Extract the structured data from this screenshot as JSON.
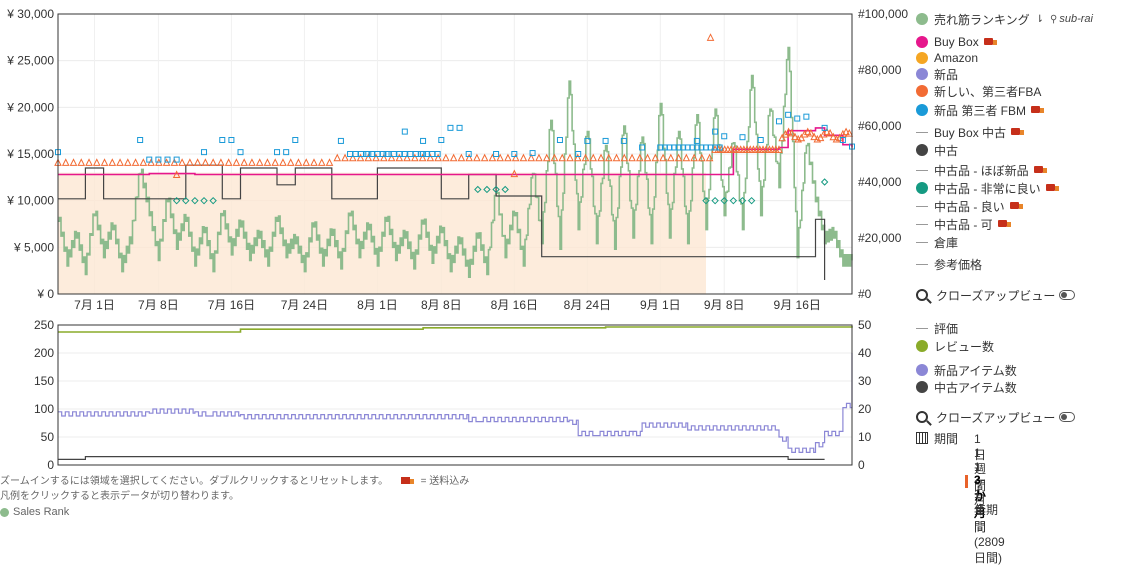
{
  "chart_data": [
    {
      "type": "line",
      "panel": "price-and-rank",
      "y_left": {
        "unit": "¥",
        "ylim": [
          0,
          30000
        ],
        "ticks": [
          "¥ 0",
          "¥ 5,000",
          "¥ 10,000",
          "¥ 15,000",
          "¥ 20,000",
          "¥ 25,000",
          "¥ 30,000"
        ]
      },
      "y_right": {
        "unit": "#",
        "ylim": [
          0,
          100000
        ],
        "ticks": [
          "#0",
          "#20,000",
          "#40,000",
          "#60,000",
          "#80,000",
          "#100,000"
        ]
      },
      "x_ticks": [
        "7月 1日",
        "7月 8日",
        "7月 16日",
        "7月 24日",
        "8月 1日",
        "8月 8日",
        "8月 16日",
        "8月 24日",
        "9月 1日",
        "9月 8日",
        "9月 16日"
      ],
      "x_range_days": [
        0,
        87
      ],
      "x_tick_days": [
        4,
        11,
        19,
        27,
        35,
        42,
        50,
        58,
        66,
        73,
        81
      ],
      "series": [
        {
          "name": "売れ筋ランキング",
          "color": "#8dbb8d",
          "axis": "right",
          "points": [
            [
              0,
              28000
            ],
            [
              1,
              12000
            ],
            [
              2,
              22000
            ],
            [
              3,
              9000
            ],
            [
              4,
              30000
            ],
            [
              5,
              15000
            ],
            [
              6,
              25000
            ],
            [
              7,
              10000
            ],
            [
              8,
              20000
            ],
            [
              9,
              45000
            ],
            [
              10,
              30000
            ],
            [
              11,
              14000
            ],
            [
              12,
              35000
            ],
            [
              13,
              18000
            ],
            [
              14,
              28000
            ],
            [
              15,
              12000
            ],
            [
              16,
              24000
            ],
            [
              17,
              10000
            ],
            [
              18,
              30000
            ],
            [
              19,
              16000
            ],
            [
              20,
              26000
            ],
            [
              21,
              14000
            ],
            [
              22,
              22000
            ],
            [
              23,
              12000
            ],
            [
              24,
              28000
            ],
            [
              25,
              15000
            ],
            [
              26,
              20000
            ],
            [
              27,
              10000
            ],
            [
              28,
              26000
            ],
            [
              29,
              12000
            ],
            [
              30,
              23000
            ],
            [
              31,
              11000
            ],
            [
              32,
              30000
            ],
            [
              33,
              15000
            ],
            [
              34,
              25000
            ],
            [
              35,
              12000
            ],
            [
              36,
              28000
            ],
            [
              37,
              14000
            ],
            [
              38,
              22000
            ],
            [
              39,
              11000
            ],
            [
              40,
              27000
            ],
            [
              41,
              13000
            ],
            [
              42,
              24000
            ],
            [
              43,
              10000
            ],
            [
              44,
              20000
            ],
            [
              45,
              8000
            ],
            [
              46,
              22000
            ],
            [
              47,
              9000
            ],
            [
              48,
              38000
            ],
            [
              49,
              15000
            ],
            [
              50,
              30000
            ],
            [
              51,
              12000
            ],
            [
              52,
              45000
            ],
            [
              53,
              20000
            ],
            [
              54,
              64000
            ],
            [
              55,
              18000
            ],
            [
              56,
              78000
            ],
            [
              57,
              25000
            ],
            [
              58,
              60000
            ],
            [
              59,
              20000
            ],
            [
              60,
              55000
            ],
            [
              61,
              18000
            ],
            [
              62,
              62000
            ],
            [
              63,
              22000
            ],
            [
              64,
              58000
            ],
            [
              65,
              20000
            ],
            [
              66,
              70000
            ],
            [
              67,
              22000
            ],
            [
              68,
              60000
            ],
            [
              69,
              20000
            ],
            [
              70,
              66000
            ],
            [
              71,
              25000
            ],
            [
              72,
              68000
            ],
            [
              73,
              30000
            ],
            [
              74,
              56000
            ],
            [
              75,
              25000
            ],
            [
              76,
              80000
            ],
            [
              77,
              30000
            ],
            [
              78,
              68000
            ],
            [
              79,
              40000
            ],
            [
              80,
              90000
            ],
            [
              81,
              15000
            ],
            [
              82,
              55000
            ],
            [
              83,
              35000
            ],
            [
              84,
              20000
            ],
            [
              85,
              22000
            ],
            [
              86,
              12000
            ],
            [
              87,
              12000
            ]
          ]
        },
        {
          "name": "Buy Box",
          "color": "#e6178c",
          "axis": "left",
          "points": [
            [
              0,
              12800
            ],
            [
              10,
              12900
            ],
            [
              15,
              12800
            ],
            [
              50,
              12800
            ],
            [
              55,
              12800
            ],
            [
              63,
              12800
            ],
            [
              73,
              12800
            ],
            [
              74,
              15500
            ],
            [
              79,
              15700
            ],
            [
              80,
              17500
            ],
            [
              83,
              17800
            ],
            [
              84,
              17000
            ],
            [
              86,
              16000
            ],
            [
              87,
              15700
            ]
          ]
        },
        {
          "name": "新しい、第三者FBA",
          "color": "#f26b34",
          "axis": "left",
          "points": [
            [
              0,
              14100
            ],
            [
              30,
              14100
            ],
            [
              31,
              14600
            ],
            [
              45,
              14600
            ],
            [
              50,
              14700
            ],
            [
              60,
              14600
            ],
            [
              73,
              14700
            ],
            [
              74,
              15500
            ],
            [
              79,
              15600
            ],
            [
              80,
              17200
            ],
            [
              83,
              17500
            ],
            [
              85,
              16800
            ],
            [
              87,
              16500
            ]
          ]
        },
        {
          "name": "中古",
          "color": "#444444",
          "axis": "left",
          "points": [
            [
              0,
              10200
            ],
            [
              3,
              10200
            ],
            [
              3,
              13500
            ],
            [
              5,
              13500
            ],
            [
              5,
              10200
            ],
            [
              14,
              10200
            ],
            [
              14,
              13800
            ],
            [
              18,
              13800
            ],
            [
              18,
              10200
            ],
            [
              20,
              10200
            ],
            [
              20,
              13500
            ],
            [
              24,
              13500
            ],
            [
              24,
              11700
            ],
            [
              26,
              11700
            ],
            [
              26,
              13500
            ],
            [
              30,
              13500
            ],
            [
              30,
              10200
            ],
            [
              35,
              10200
            ],
            [
              35,
              13500
            ],
            [
              42,
              13500
            ],
            [
              42,
              10200
            ],
            [
              45,
              10200
            ],
            [
              45,
              12800
            ],
            [
              48,
              12800
            ],
            [
              48,
              10500
            ],
            [
              53,
              10500
            ],
            [
              53,
              4000
            ],
            [
              83,
              4000
            ],
            [
              83,
              8000
            ],
            [
              84,
              8000
            ],
            [
              84,
              1500
            ]
          ]
        },
        {
          "name": "新品 第三者 FBM",
          "color": "#1a9ad8",
          "axis": "left"
        },
        {
          "name": "中古品 - 非常に良い",
          "color": "#159a82",
          "axis": "left"
        }
      ]
    },
    {
      "type": "line",
      "panel": "counts",
      "y_left": {
        "ylim": [
          0,
          250
        ],
        "ticks": [
          "0",
          "50",
          "100",
          "150",
          "200",
          "250"
        ]
      },
      "y_right": {
        "ylim": [
          0,
          50
        ],
        "ticks": [
          "0",
          "10",
          "20",
          "30",
          "40",
          "50"
        ]
      },
      "series": [
        {
          "name": "レビュー数",
          "color": "#8aab2a",
          "axis": "right",
          "points": [
            [
              0,
              47.5
            ],
            [
              20,
              48.5
            ],
            [
              40,
              49
            ],
            [
              60,
              49.3
            ],
            [
              87,
              49.6
            ]
          ]
        },
        {
          "name": "新品アイテム数",
          "color": "#8b87d6",
          "axis": "right",
          "points": [
            [
              0,
              19
            ],
            [
              10,
              20
            ],
            [
              15,
              19
            ],
            [
              20,
              18
            ],
            [
              30,
              18
            ],
            [
              45,
              17
            ],
            [
              56,
              16
            ],
            [
              57,
              12
            ],
            [
              63,
              12
            ],
            [
              64,
              15
            ],
            [
              69,
              14
            ],
            [
              79,
              10
            ],
            [
              80,
              6
            ],
            [
              82,
              6
            ],
            [
              83,
              8
            ],
            [
              84,
              12
            ],
            [
              86,
              22
            ],
            [
              87,
              40
            ]
          ]
        },
        {
          "name": "中古アイテム数",
          "color": "#444444",
          "axis": "right",
          "points": [
            [
              0,
              2
            ],
            [
              3,
              3
            ],
            [
              10,
              3
            ],
            [
              20,
              3
            ],
            [
              30,
              3
            ],
            [
              50,
              3
            ],
            [
              80,
              2
            ],
            [
              84,
              2
            ]
          ]
        }
      ]
    }
  ],
  "legend": {
    "sales_rank": "売れ筋ランキング",
    "sub_rank": "sub-rai",
    "buy_box": "Buy Box",
    "amazon": "Amazon",
    "new": "新品",
    "new_fba": "新しい、第三者FBA",
    "new_fbm": "新品 第三者 FBM",
    "buy_box_used": "Buy Box 中古",
    "used": "中古",
    "used_like_new": "中古品 - ほぼ新品",
    "used_very_good": "中古品 - 非常に良い",
    "used_good": "中古品 - 良い",
    "used_acceptable": "中古品 - 可",
    "warehouse": "倉庫",
    "reference_price": "参考価格",
    "closeup_view": "クローズアップビュー",
    "rating": "評価",
    "review_count": "レビュー数",
    "new_item_count": "新品アイテム数",
    "used_item_count": "中古アイテム数",
    "closeup_view_2": "クローズアップビュー",
    "period_label": "期間"
  },
  "colors": {
    "sales_rank": "#8dbb8d",
    "buy_box": "#e6178c",
    "amazon": "#f5a623",
    "new": "#8b87d6",
    "new_fba": "#f26b34",
    "new_fbm": "#1a9ad8",
    "used": "#444444",
    "used_very_good": "#159a82",
    "review": "#8aab2a"
  },
  "period_options": [
    "1日",
    "1週間",
    "1ケ月",
    "3か月",
    "1年間",
    "全期間 (2809 日間)"
  ],
  "period_active": "3か月",
  "notes": {
    "zoom_hint": "ズームインするには領域を選択してください。ダブルクリックするとリセットします。",
    "shipping_label": "= 送料込み",
    "legend_hint": "凡例をクリックすると表示データが切り替わります。",
    "sales_rank_footer": "Sales Rank"
  }
}
